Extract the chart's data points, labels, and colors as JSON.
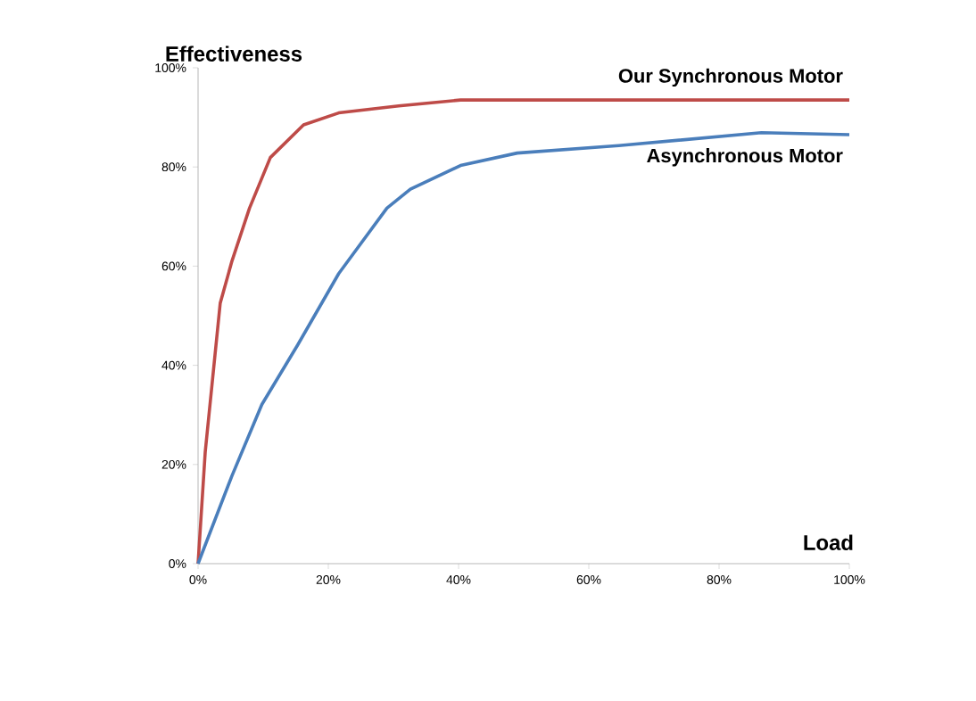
{
  "chart_data": {
    "type": "line",
    "xlabel": "Load",
    "ylabel": "Effectiveness",
    "xlim": [
      0,
      100
    ],
    "ylim": [
      0,
      100
    ],
    "xticks": [
      {
        "value": 0,
        "label": "0%"
      },
      {
        "value": 20,
        "label": "20%"
      },
      {
        "value": 40,
        "label": "40%"
      },
      {
        "value": 60,
        "label": "60%"
      },
      {
        "value": 80,
        "label": "80%"
      },
      {
        "value": 100,
        "label": "100%"
      }
    ],
    "yticks": [
      {
        "value": 0,
        "label": "0%"
      },
      {
        "value": 20,
        "label": "20%"
      },
      {
        "value": 40,
        "label": "40%"
      },
      {
        "value": 60,
        "label": "60%"
      },
      {
        "value": 80,
        "label": "80%"
      },
      {
        "value": 100,
        "label": "100%"
      }
    ],
    "grid": false,
    "legend": false,
    "marker": "none",
    "line_style": "solid",
    "series": [
      {
        "name": "Our Synchronous Motor",
        "color": "#be4b48",
        "x": [
          0,
          1.1,
          3.4,
          5.2,
          7.9,
          11.1,
          16.2,
          21.6,
          30.8,
          40.3,
          100
        ],
        "values": [
          0,
          22.5,
          52.5,
          61,
          71.7,
          81.9,
          88.5,
          90.9,
          92.3,
          93.5,
          93.5
        ]
      },
      {
        "name": "Asynchronous Motor",
        "color": "#4a7ebb",
        "x": [
          0,
          5.2,
          9.8,
          15.3,
          21.6,
          29,
          32.6,
          40.3,
          49,
          64.6,
          86.5,
          100
        ],
        "values": [
          0,
          17.7,
          32.1,
          44.1,
          58.5,
          71.7,
          75.5,
          80.3,
          82.8,
          84.3,
          86.9,
          86.5
        ]
      }
    ]
  }
}
